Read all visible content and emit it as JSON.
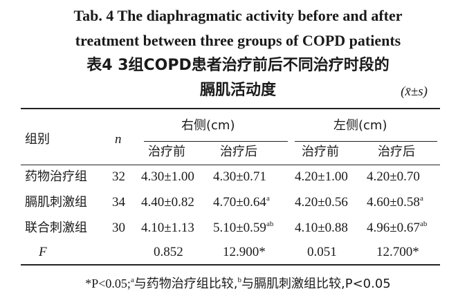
{
  "title": {
    "en_line1": "Tab. 4    The diaphragmatic activity before and after",
    "en_line2": "treatment between three groups of COPD patients",
    "zh_line1": "表4    3组COPD患者治疗前后不同治疗时段的",
    "zh_line2": "膈肌活动度",
    "unit": "(x̄±s)"
  },
  "table": {
    "header": {
      "group": "组别",
      "n": "n",
      "right_side": "右侧(cm)",
      "left_side": "左侧(cm)",
      "before": "治疗前",
      "after": "治疗后"
    },
    "rows": [
      {
        "group": "药物治疗组",
        "n": "32",
        "r_before": "4.30±1.00",
        "r_after": "4.30±0.71",
        "r_after_sup": "",
        "l_before": "4.20±1.00",
        "l_after": "4.20±0.70",
        "l_after_sup": ""
      },
      {
        "group": "膈肌刺激组",
        "n": "34",
        "r_before": "4.40±0.82",
        "r_after": "4.70±0.64",
        "r_after_sup": "a",
        "l_before": "4.20±0.56",
        "l_after": "4.60±0.58",
        "l_after_sup": "a"
      },
      {
        "group": "联合刺激组",
        "n": "30",
        "r_before": "4.10±1.13",
        "r_after": "5.10±0.59",
        "r_after_sup": "ab",
        "l_before": "4.10±0.88",
        "l_after": "4.96±0.67",
        "l_after_sup": "ab"
      }
    ],
    "f_row": {
      "label": "F",
      "r_before": "0.852",
      "r_after": "12.900*",
      "l_before": "0.051",
      "l_after": "12.700*"
    }
  },
  "footnote": {
    "p1": "*P<0.05;",
    "sup_a": "a",
    "p2": "与药物治疗组比较,",
    "sup_b": "b",
    "p3": "与膈肌刺激组比较,P<0.05"
  }
}
